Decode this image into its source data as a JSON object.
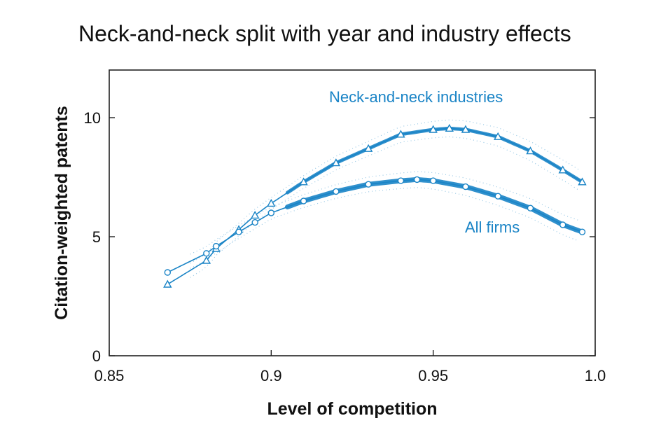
{
  "chart_data": {
    "type": "scatter",
    "title": "Neck-and-neck split with year and industry effects",
    "xlabel": "Level of competition",
    "ylabel": "Citation-weighted patents",
    "xlim": [
      0.85,
      1.0
    ],
    "ylim": [
      0,
      12
    ],
    "xticks": [
      "0.85",
      "0.9",
      "0.95",
      "1.0"
    ],
    "xtick_values": [
      0.85,
      0.9,
      0.95,
      1.0
    ],
    "yticks": [
      "0",
      "5",
      "10"
    ],
    "ytick_values": [
      0,
      5,
      10
    ],
    "grid": false,
    "color": "#1a84c6",
    "series": [
      {
        "name": "Neck-and-neck industries",
        "marker": "triangle",
        "x": [
          0.868,
          0.88,
          0.883,
          0.89,
          0.895,
          0.9,
          0.91,
          0.92,
          0.93,
          0.94,
          0.95,
          0.955,
          0.96,
          0.97,
          0.98,
          0.99,
          0.996
        ],
        "values": [
          3.0,
          4.0,
          4.5,
          5.3,
          5.9,
          6.4,
          7.3,
          8.1,
          8.7,
          9.3,
          9.5,
          9.55,
          9.5,
          9.2,
          8.6,
          7.8,
          7.3
        ]
      },
      {
        "name": "All firms",
        "marker": "circle",
        "x": [
          0.868,
          0.88,
          0.883,
          0.89,
          0.895,
          0.9,
          0.91,
          0.92,
          0.93,
          0.94,
          0.945,
          0.95,
          0.96,
          0.97,
          0.98,
          0.99,
          0.996
        ],
        "values": [
          3.5,
          4.3,
          4.6,
          5.2,
          5.6,
          6.0,
          6.5,
          6.9,
          7.2,
          7.35,
          7.4,
          7.35,
          7.1,
          6.7,
          6.2,
          5.5,
          5.2
        ]
      }
    ]
  }
}
